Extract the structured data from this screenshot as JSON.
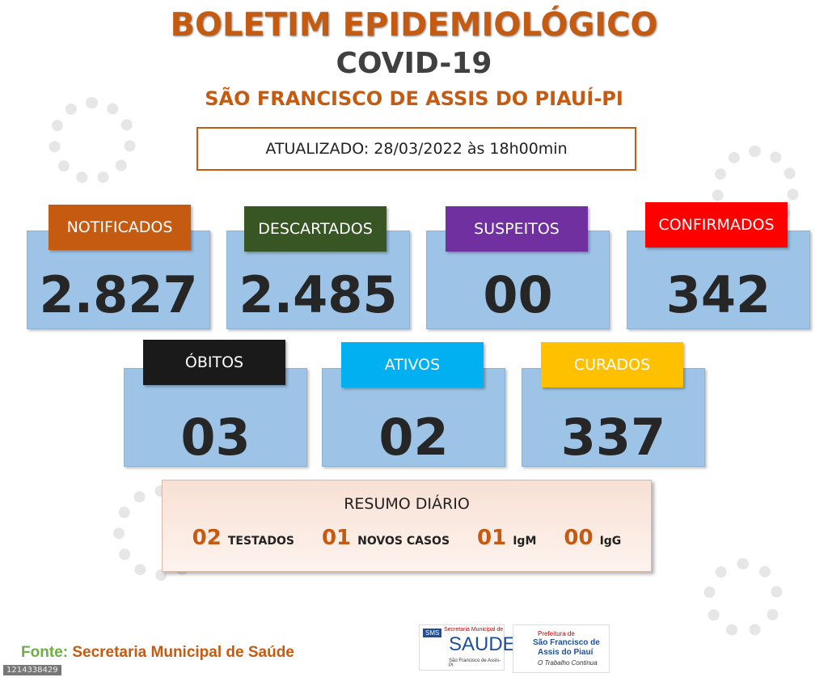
{
  "header": {
    "title": "BOLETIM EPIDEMIOLÓGICO",
    "subtitle": "COVID-19",
    "location": "SÃO FRANCISCO DE ASSIS DO PIAUÍ-PI",
    "updated": "ATUALIZADO: 28/03/2022 às 18h00min"
  },
  "cards": [
    {
      "label": "NOTIFICADOS",
      "value": "2.827",
      "color": "#c55a11"
    },
    {
      "label": "DESCARTADOS",
      "value": "2.485",
      "color": "#375623"
    },
    {
      "label": "SUSPEITOS",
      "value": "00",
      "color": "#7030a0"
    },
    {
      "label": "CONFIRMADOS",
      "value": "342",
      "color": "#ff0000"
    },
    {
      "label": "ÓBITOS",
      "value": "03",
      "color": "#1a1a1a"
    },
    {
      "label": "ATIVOS",
      "value": "02",
      "color": "#00b0f0"
    },
    {
      "label": "CURADOS",
      "value": "337",
      "color": "#ffc000"
    }
  ],
  "summary": {
    "title": "RESUMO DIÁRIO",
    "items": [
      {
        "value": "02",
        "label": "TESTADOS"
      },
      {
        "value": "01",
        "label": "NOVOS CASOS"
      },
      {
        "value": "01",
        "label": "IgM"
      },
      {
        "value": "00",
        "label": "IgG"
      }
    ]
  },
  "footer": {
    "source_label": "Fonte:",
    "source": "Secretaria Municipal de Saúde",
    "image_id": "1214338429",
    "logo_sms": {
      "badge": "SMS",
      "top": "Secretaria Municipal de",
      "name": "SAUDE",
      "bottom": "São Francisco de Assis-PI"
    },
    "logo_prefeitura": {
      "top": "Prefeitura de",
      "name_1": "São Francisco de",
      "name_2": "Assis do Piauí",
      "slogan": "O Trabalho Continua"
    }
  }
}
